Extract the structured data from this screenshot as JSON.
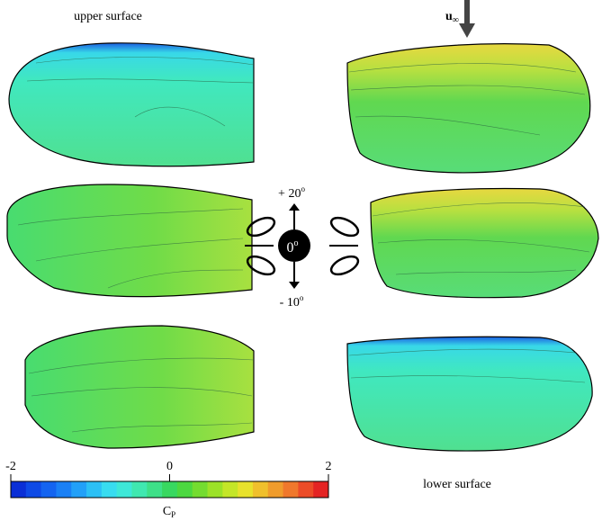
{
  "labels": {
    "upper": "upper surface",
    "lower": "lower surface",
    "freestream": "u",
    "freestream_sub": "∞",
    "angle_up": "+ 20",
    "angle_up_sup": "o",
    "angle_down": "- 10",
    "angle_down_sup": "o",
    "angle_center": "0",
    "angle_center_sup": "o"
  },
  "colorbar": {
    "lim": [
      -2,
      2
    ],
    "ticks": [
      -2,
      0,
      2
    ],
    "label": "C",
    "label_sub": "P",
    "colors": [
      "#0a2fd6",
      "#0e4ae6",
      "#1464f0",
      "#1a80f5",
      "#22a0f8",
      "#2cc0f5",
      "#38dcf0",
      "#3ee8d8",
      "#40e8b0",
      "#3ee088",
      "#38d860",
      "#4cd840",
      "#74dc30",
      "#9ce228",
      "#c4e628",
      "#e8e22c",
      "#f0c02c",
      "#f09c2c",
      "#f0782c",
      "#ec4c28",
      "#e42424"
    ]
  }
}
